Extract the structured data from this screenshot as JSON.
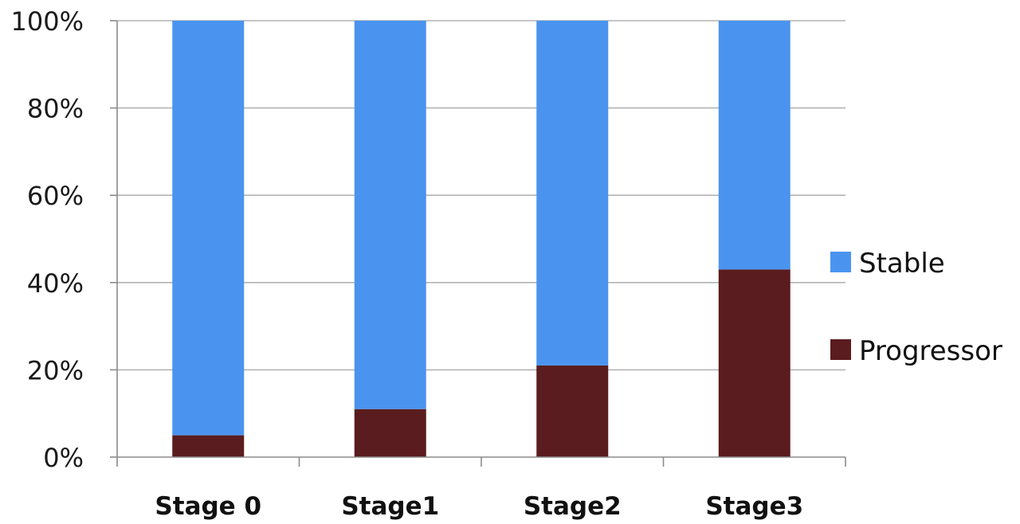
{
  "chart_data": {
    "type": "bar",
    "stacked": true,
    "categories": [
      "Stage 0",
      "Stage1",
      "Stage2",
      "Stage3"
    ],
    "series": [
      {
        "name": "Progressor",
        "values": [
          5,
          11,
          21,
          43
        ],
        "color": "#5a1c1e"
      },
      {
        "name": "Stable",
        "values": [
          95,
          89,
          79,
          57
        ],
        "color": "#4a94f0"
      }
    ],
    "ylim": [
      0,
      100
    ],
    "yticks": [
      0,
      20,
      40,
      60,
      80,
      100
    ],
    "ytick_labels": [
      "0%",
      "20%",
      "40%",
      "60%",
      "80%",
      "100%"
    ],
    "title": "",
    "xlabel": "",
    "ylabel": "",
    "grid": "horizontal",
    "legend_position": "right",
    "legend_order": [
      "Stable",
      "Progressor"
    ]
  }
}
